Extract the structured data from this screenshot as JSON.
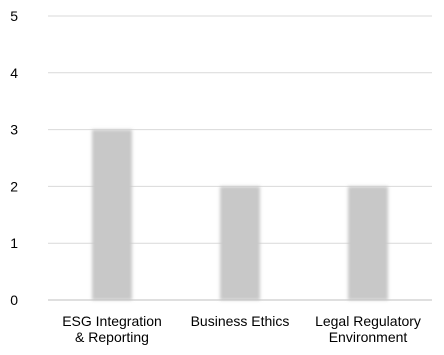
{
  "chart_data": {
    "type": "bar",
    "categories": [
      [
        "ESG Integration",
        "& Reporting"
      ],
      [
        "Business Ethics"
      ],
      [
        "Legal Regulatory",
        "Environment"
      ]
    ],
    "values": [
      3,
      2,
      2
    ],
    "ylim": [
      0,
      5
    ],
    "yticks": [
      0,
      1,
      2,
      3,
      4,
      5
    ],
    "grid": true,
    "legend": "none",
    "colors": {
      "bar": "#c8c8c8",
      "bar_edge": "#bdbdbd",
      "grid": "#d9d9d9",
      "axis": "#bfbfbf",
      "text": "#000000"
    }
  }
}
